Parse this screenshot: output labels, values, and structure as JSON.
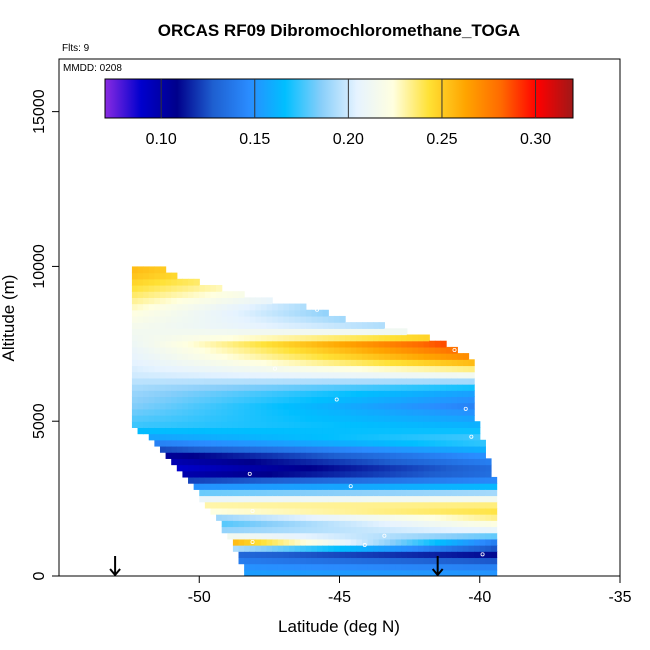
{
  "chart_data": {
    "type": "heatmap",
    "title": "ORCAS RF09 Dibromochloromethane_TOGA",
    "flights_label": "Flts: 9",
    "date_label": "MMDD: 0208",
    "xlabel": "Latitude (deg N)",
    "ylabel": "Altitude (m)",
    "xlim": [
      -55,
      -35
    ],
    "ylim": [
      0,
      16700
    ],
    "xticks": [
      -50,
      -45,
      -40,
      -35
    ],
    "yticks": [
      0,
      5000,
      10000,
      15000
    ],
    "colorbar": {
      "range": [
        0.07,
        0.32
      ],
      "ticks": [
        0.1,
        0.15,
        0.2,
        0.25,
        0.3
      ],
      "tick_labels": [
        "0.10",
        "0.15",
        "0.20",
        "0.25",
        "0.30"
      ],
      "colors": [
        "#8a2be2",
        "#0000cd",
        "#00008b",
        "#1e5fd0",
        "#2a8cff",
        "#00bfff",
        "#87cefa",
        "#e6f3ff",
        "#ffffe0",
        "#ffe135",
        "#ffa500",
        "#ff6a00",
        "#ff0000",
        "#a01818"
      ]
    },
    "arrows_lat": [
      -53,
      -41.5
    ],
    "region": {
      "lat_min": -52.4,
      "lat_max": -39.4,
      "top_altitude": [
        [
          -51.4,
          10000
        ],
        [
          -50.5,
          9600
        ],
        [
          -48,
          9000
        ],
        [
          -46.1,
          8700
        ],
        [
          -44.8,
          8300
        ],
        [
          -43.4,
          8100
        ],
        [
          -41.4,
          7600
        ],
        [
          -40.3,
          7000
        ],
        [
          -40.2,
          5300
        ],
        [
          -39.8,
          4200
        ],
        [
          -39.3,
          2500
        ],
        [
          -39.3,
          200
        ]
      ],
      "bottom_altitude": [
        [
          -52.4,
          4900
        ],
        [
          -51.5,
          4200
        ],
        [
          -50.5,
          3200
        ],
        [
          -49.3,
          1800
        ],
        [
          -48.6,
          600
        ],
        [
          -48.3,
          0
        ],
        [
          -39.3,
          0
        ]
      ]
    },
    "layers": [
      {
        "alt": 200,
        "west": 0.155,
        "east": 0.15
      },
      {
        "alt": 700,
        "west": 0.14,
        "east": 0.11
      },
      {
        "alt": 1100,
        "west": 0.3,
        "east": 0.14
      },
      {
        "alt": 1400,
        "west": 0.19,
        "east": 0.2
      },
      {
        "alt": 1800,
        "west": 0.155,
        "east": 0.23
      },
      {
        "alt": 2200,
        "west": 0.24,
        "east": 0.245
      },
      {
        "alt": 2600,
        "west": 0.195,
        "east": 0.205
      },
      {
        "alt": 3000,
        "west": 0.13,
        "east": 0.15
      },
      {
        "alt": 3400,
        "west": 0.08,
        "east": 0.13
      },
      {
        "alt": 3900,
        "west": 0.1,
        "east": 0.15
      },
      {
        "alt": 4400,
        "west": 0.15,
        "east": 0.18
      },
      {
        "alt": 4900,
        "west": 0.175,
        "east": 0.16
      },
      {
        "alt": 5500,
        "west": 0.185,
        "east": 0.14
      },
      {
        "alt": 6000,
        "west": 0.19,
        "east": 0.155
      },
      {
        "alt": 6500,
        "west": 0.2,
        "east": 0.215
      },
      {
        "alt": 7000,
        "west": 0.205,
        "east": 0.27
      },
      {
        "alt": 7500,
        "west": 0.21,
        "east": 0.3
      },
      {
        "alt": 8000,
        "west": 0.215,
        "east": 0.19
      },
      {
        "alt": 8600,
        "west": 0.225,
        "east": 0.15
      },
      {
        "alt": 9200,
        "west": 0.24,
        "east": 0.18
      },
      {
        "alt": 9800,
        "west": 0.255,
        "east": 0.2
      }
    ],
    "sample_points": [
      {
        "lat": -48.2,
        "alt": 3300
      },
      {
        "lat": -47.3,
        "alt": 6700
      },
      {
        "lat": -45.1,
        "alt": 5700
      },
      {
        "lat": -44.6,
        "alt": 2900
      },
      {
        "lat": -40.9,
        "alt": 7300
      },
      {
        "lat": -40.5,
        "alt": 5400
      },
      {
        "lat": -40.3,
        "alt": 4500
      },
      {
        "lat": -48.1,
        "alt": 1100
      },
      {
        "lat": -44.1,
        "alt": 1000
      },
      {
        "lat": -43.4,
        "alt": 1300
      },
      {
        "lat": -39.9,
        "alt": 700
      },
      {
        "lat": -48.6,
        "alt": 200
      },
      {
        "lat": -39.3,
        "alt": 400
      },
      {
        "lat": -48.1,
        "alt": 2100
      },
      {
        "lat": -45.8,
        "alt": 8600
      }
    ]
  }
}
